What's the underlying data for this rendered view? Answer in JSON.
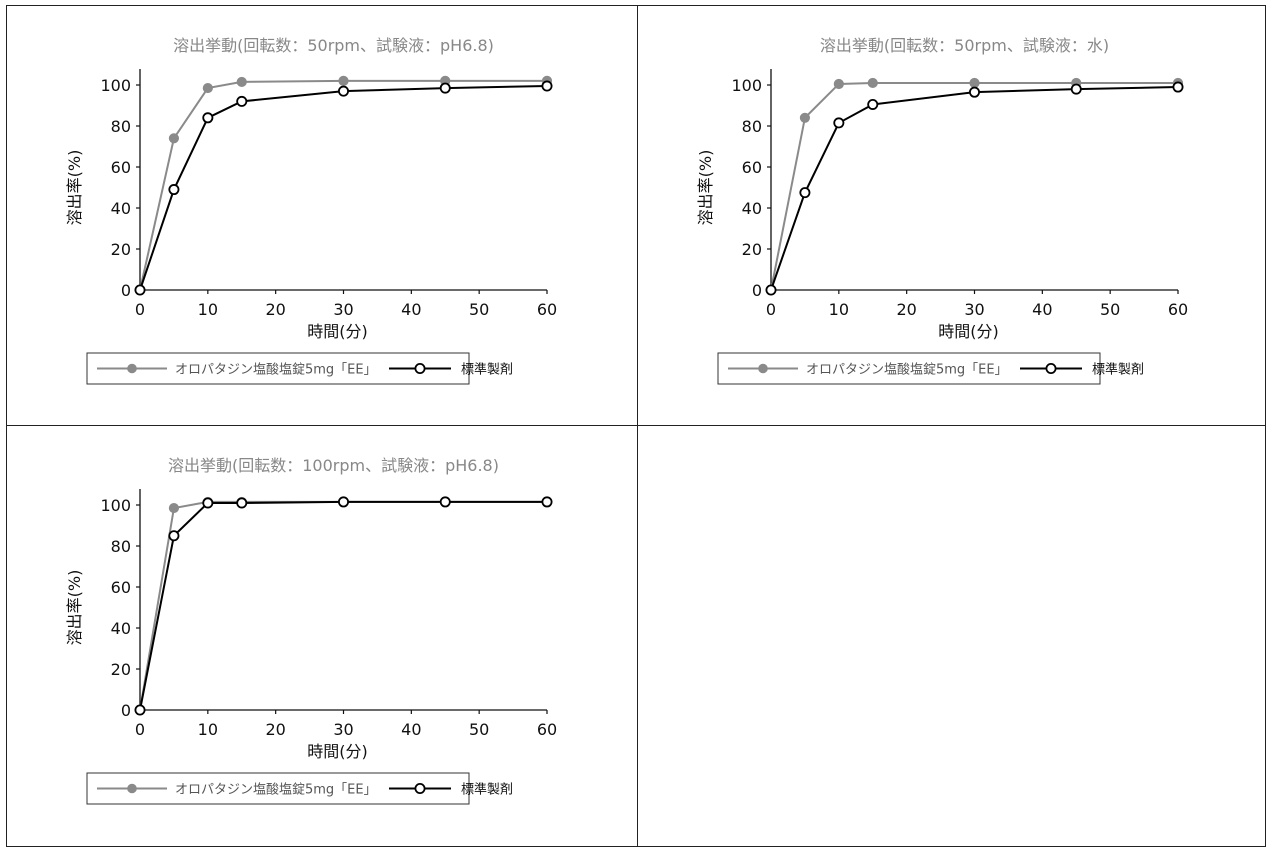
{
  "chart_data": [
    {
      "type": "line",
      "title": "溶出挙動(回転数：50rpm、試験液：pH6.8)",
      "xlabel": "時間(分)",
      "ylabel": "溶出率(%)",
      "xlim": [
        0,
        60
      ],
      "ylim": [
        0,
        100
      ],
      "xticks": [
        "0",
        "10",
        "20",
        "30",
        "40",
        "50",
        "60"
      ],
      "yticks": [
        "0",
        "20",
        "40",
        "60",
        "80",
        "100"
      ],
      "series": [
        {
          "name": "オロパタジン塩酸塩錠5mg「EE」",
          "color": "#8a8a8a",
          "marker": "filled-circle",
          "x": [
            0,
            5,
            10,
            15,
            30,
            45,
            60
          ],
          "y": [
            0,
            74,
            98.5,
            101.5,
            102,
            102,
            102
          ]
        },
        {
          "name": "標準製剤",
          "color": "#000000",
          "marker": "open-circle",
          "x": [
            0,
            5,
            10,
            15,
            30,
            45,
            60
          ],
          "y": [
            0,
            49,
            84,
            92,
            97,
            98.5,
            99.5
          ]
        }
      ],
      "legend": "bottom"
    },
    {
      "type": "line",
      "title": "溶出挙動(回転数：50rpm、試験液：水)",
      "xlabel": "時間(分)",
      "ylabel": "溶出率(%)",
      "xlim": [
        0,
        60
      ],
      "ylim": [
        0,
        100
      ],
      "xticks": [
        "0",
        "10",
        "20",
        "30",
        "40",
        "50",
        "60"
      ],
      "yticks": [
        "0",
        "20",
        "40",
        "60",
        "80",
        "100"
      ],
      "series": [
        {
          "name": "オロパタジン塩酸塩錠5mg「EE」",
          "color": "#8a8a8a",
          "marker": "filled-circle",
          "x": [
            0,
            5,
            10,
            15,
            30,
            45,
            60
          ],
          "y": [
            0,
            84,
            100.5,
            101,
            101,
            101,
            101
          ]
        },
        {
          "name": "標準製剤",
          "color": "#000000",
          "marker": "open-circle",
          "x": [
            0,
            5,
            10,
            15,
            30,
            45,
            60
          ],
          "y": [
            0,
            47.5,
            81.5,
            90.5,
            96.5,
            98,
            99
          ]
        }
      ],
      "legend": "bottom"
    },
    {
      "type": "line",
      "title": "溶出挙動(回転数：100rpm、試験液：pH6.8)",
      "xlabel": "時間(分)",
      "ylabel": "溶出率(%)",
      "xlim": [
        0,
        60
      ],
      "ylim": [
        0,
        100
      ],
      "xticks": [
        "0",
        "10",
        "20",
        "30",
        "40",
        "50",
        "60"
      ],
      "yticks": [
        "0",
        "20",
        "40",
        "60",
        "80",
        "100"
      ],
      "series": [
        {
          "name": "オロパタジン塩酸塩錠5mg「EE」",
          "color": "#8a8a8a",
          "marker": "filled-circle",
          "x": [
            0,
            5,
            10,
            15,
            30,
            45,
            60
          ],
          "y": [
            0,
            98.5,
            101.5,
            101.5,
            101.5,
            101.5,
            101.5
          ]
        },
        {
          "name": "標準製剤",
          "color": "#000000",
          "marker": "open-circle",
          "x": [
            0,
            5,
            10,
            15,
            30,
            45,
            60
          ],
          "y": [
            0,
            85,
            101,
            101,
            101.5,
            101.5,
            101.5
          ]
        }
      ],
      "legend": "bottom"
    }
  ]
}
